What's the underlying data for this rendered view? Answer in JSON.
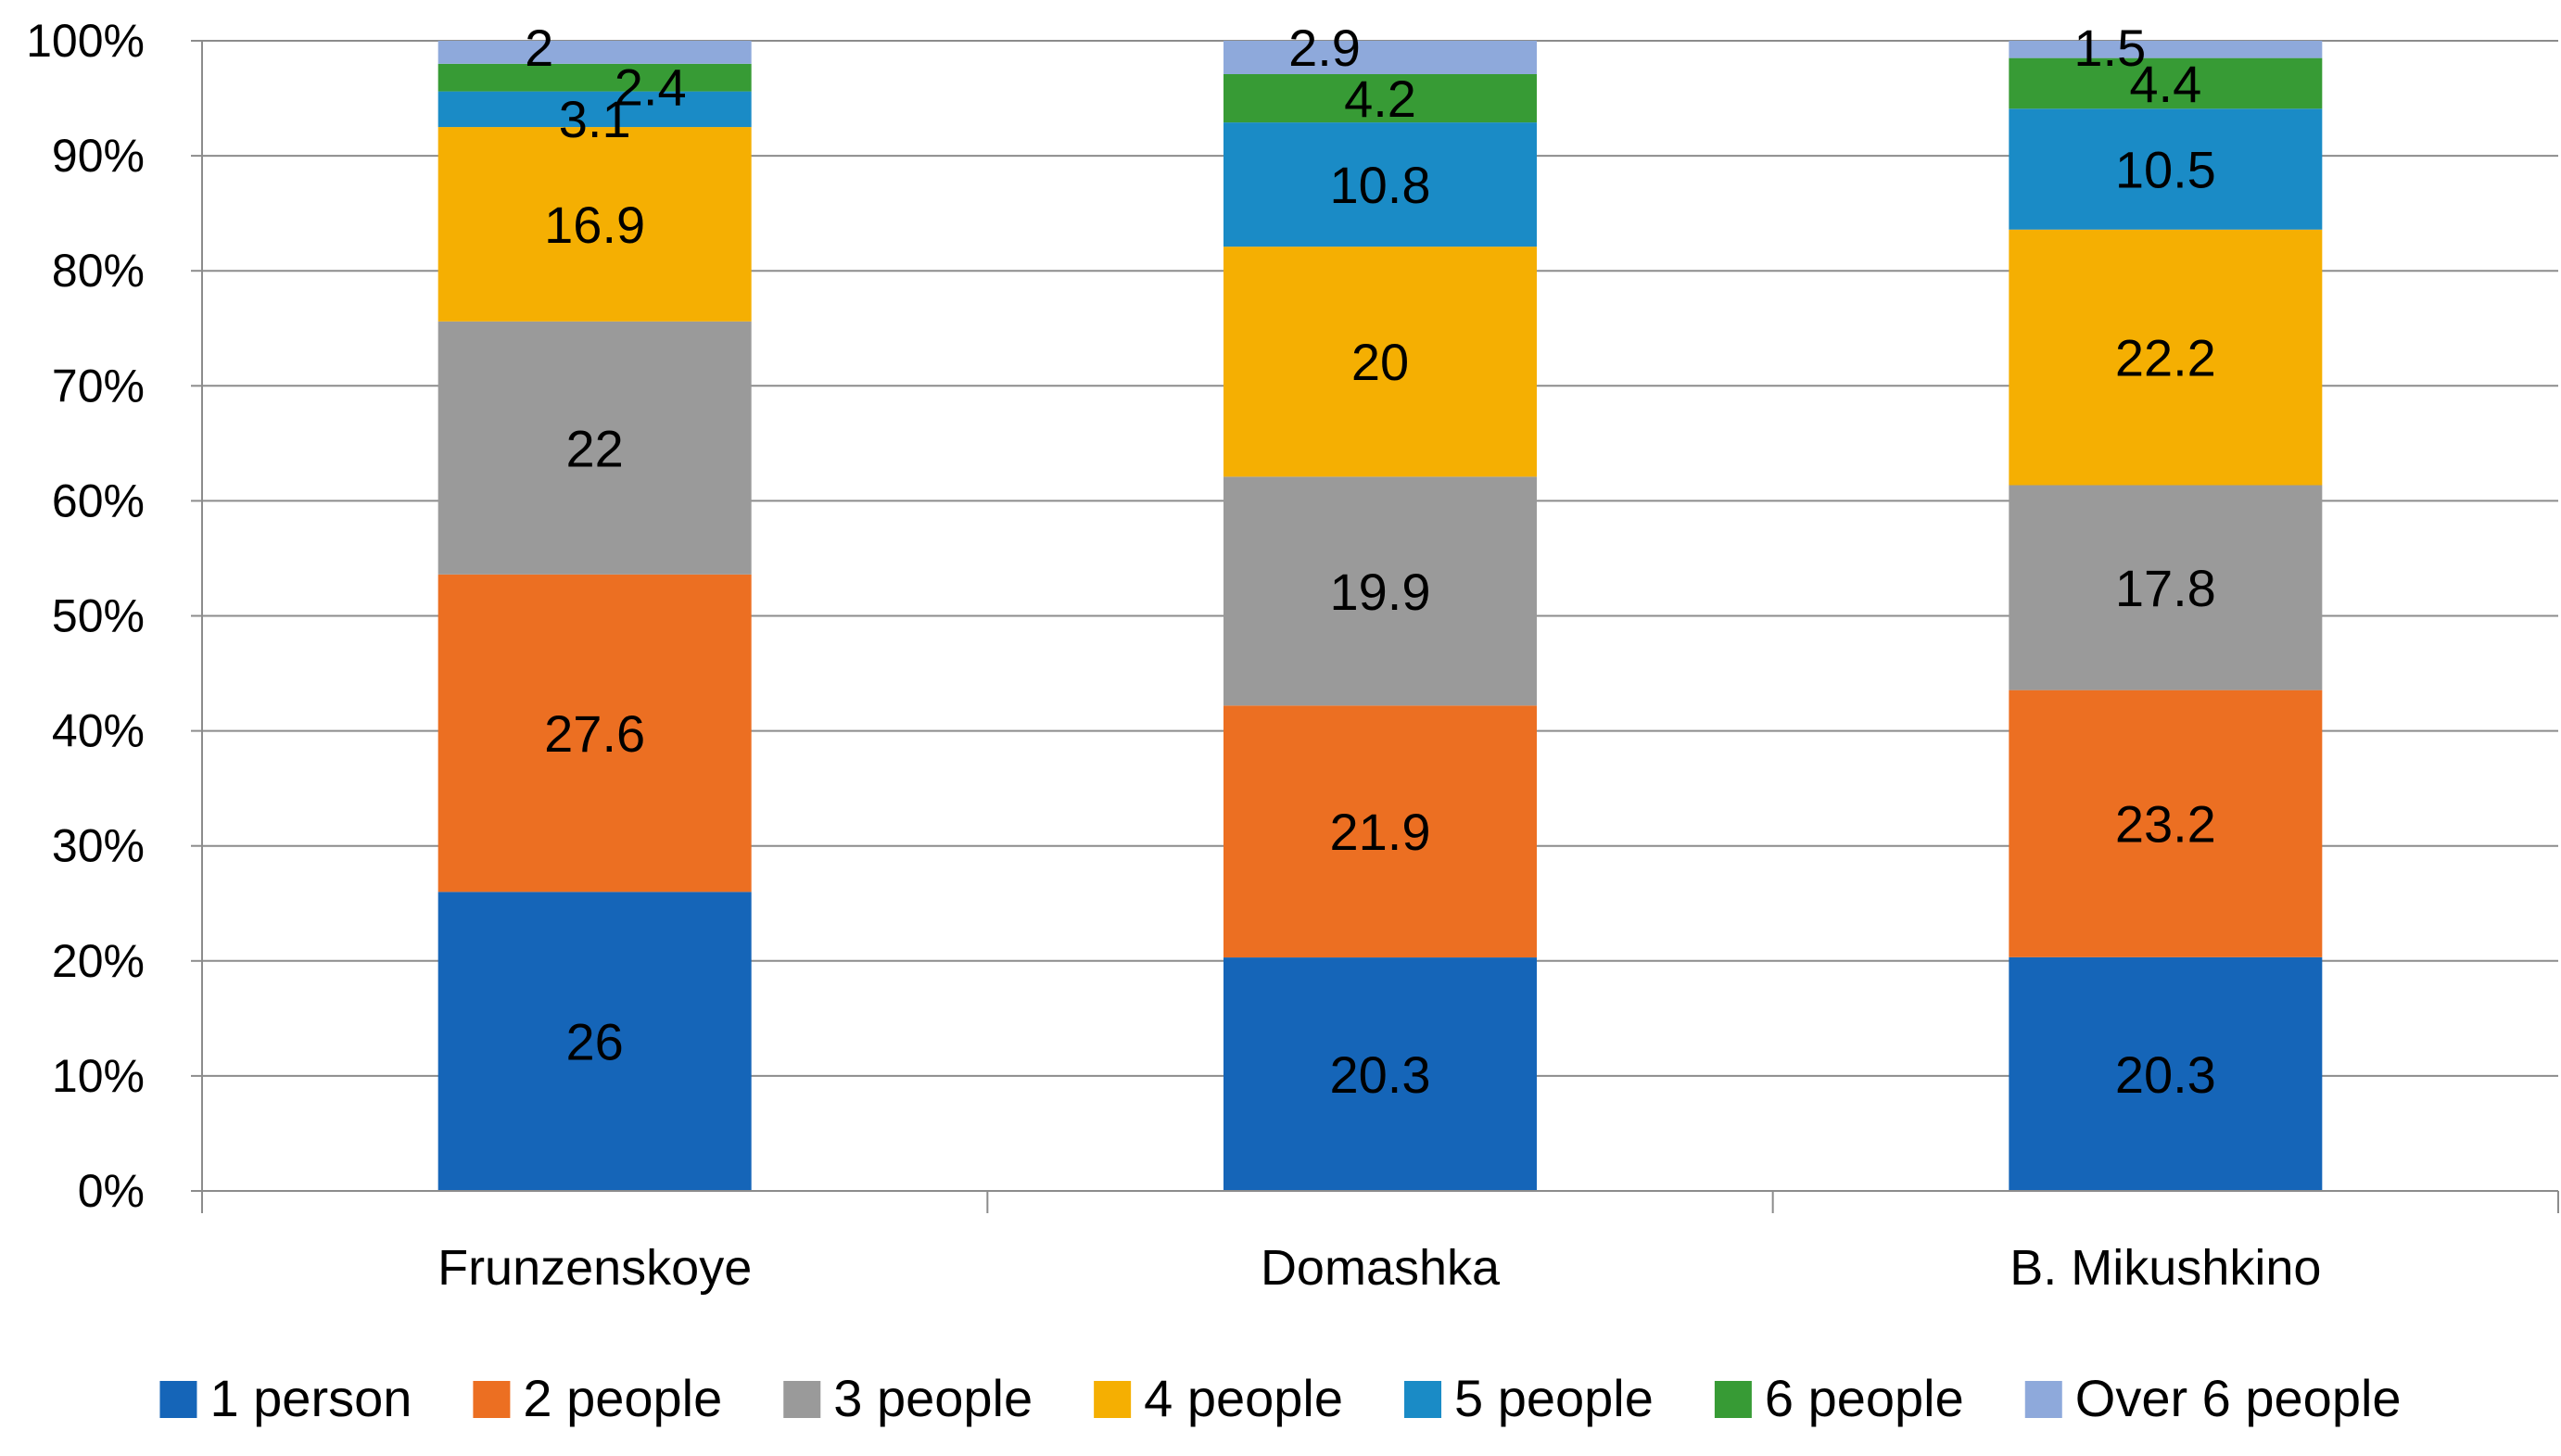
{
  "chart_data": {
    "type": "bar",
    "stacked": true,
    "normalized": true,
    "title": "",
    "xlabel": "",
    "ylabel": "",
    "ylim": [
      0,
      100
    ],
    "y_ticks": [
      "0%",
      "10%",
      "20%",
      "30%",
      "40%",
      "50%",
      "60%",
      "70%",
      "80%",
      "90%",
      "100%"
    ],
    "grid": true,
    "legend_position": "bottom",
    "categories": [
      "Frunzenskoye",
      "Domashka",
      "B. Mikushkino"
    ],
    "series": [
      {
        "name": "1 person",
        "color": "#1565B8",
        "values": [
          26,
          20.3,
          20.3
        ],
        "labels": [
          "26",
          "20.3",
          "20.3"
        ]
      },
      {
        "name": "2 people",
        "color": "#EC6F22",
        "values": [
          27.6,
          21.9,
          23.2
        ],
        "labels": [
          "27.6",
          "21.9",
          "23.2"
        ]
      },
      {
        "name": "3 people",
        "color": "#9A9A9A",
        "values": [
          22,
          19.9,
          17.8
        ],
        "labels": [
          "22",
          "19.9",
          "17.8"
        ]
      },
      {
        "name": "4 people",
        "color": "#F5AF02",
        "values": [
          16.9,
          20,
          22.2
        ],
        "labels": [
          "16.9",
          "20",
          "22.2"
        ]
      },
      {
        "name": "5 people",
        "color": "#1A8BC6",
        "values": [
          3.1,
          10.8,
          10.5
        ],
        "labels": [
          "3.1",
          "10.8",
          "10.5"
        ]
      },
      {
        "name": "6 people",
        "color": "#379B35",
        "values": [
          2.4,
          4.2,
          4.4
        ],
        "labels": [
          "2.4",
          "4.2",
          "4.4"
        ]
      },
      {
        "name": "Over 6 people",
        "color": "#8EA9DB",
        "values": [
          2,
          2.9,
          1.5
        ],
        "labels": [
          "2",
          "2.9",
          "1.5"
        ]
      }
    ]
  }
}
